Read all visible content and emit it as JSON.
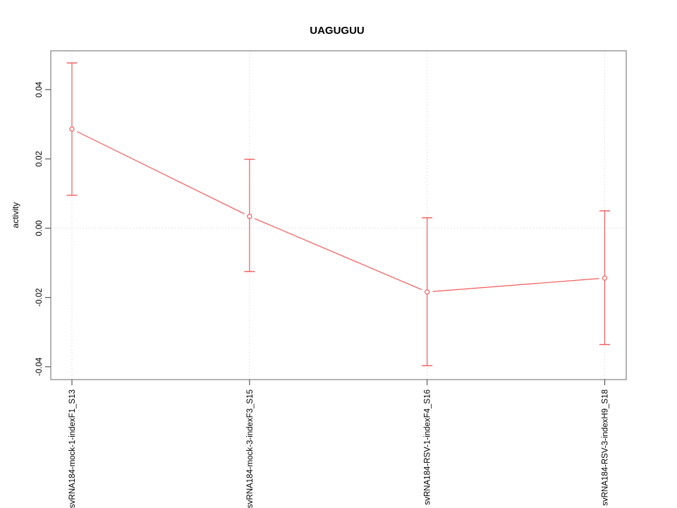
{
  "chart_data": {
    "type": "line",
    "title": "UAGUGUU",
    "xlabel": "",
    "ylabel": "activity",
    "categories": [
      "svRNA184-mock-1-indexF1_S13",
      "svRNA184-mock-3-indexF3_S15",
      "svRNA184-RSV-1-indexF4_S16",
      "svRNA184-RSV-3-indexH9_S18"
    ],
    "series": [
      {
        "name": "activity",
        "values": [
          0.0286,
          0.0034,
          -0.0184,
          -0.0144
        ],
        "error_low": [
          0.0095,
          -0.0125,
          -0.0397,
          -0.0336
        ],
        "error_high": [
          0.0477,
          0.0199,
          0.003,
          0.005
        ]
      }
    ],
    "yticks": [
      -0.04,
      -0.02,
      0,
      0.02,
      0.04
    ],
    "ytick_labels": [
      "-0.04",
      "-0.02",
      "0.00",
      "0.02",
      "0.04"
    ],
    "ylim": [
      -0.0437,
      0.0512
    ],
    "grid": {
      "vertical_at_categories": true,
      "horizontal_at_zero": true,
      "style": "dotted"
    },
    "legend": "none",
    "marker": "open-circle",
    "colors": {
      "series": "#f25b5b",
      "grid": "#dcdcdc",
      "box": "#8a8a8a",
      "tick": "#5a5a5a",
      "text": "#000000",
      "background": "#ffffff"
    }
  }
}
